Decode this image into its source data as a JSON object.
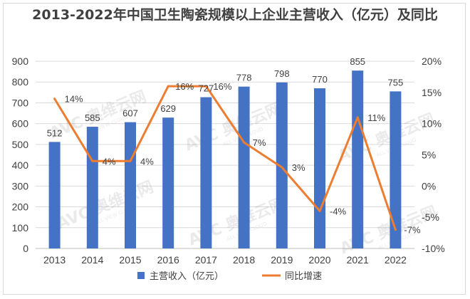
{
  "chart_data": {
    "type": "bar+line",
    "title": "2013-2022年中国卫生陶瓷规模以上企业主营收入（亿元）及同比",
    "categories": [
      "2013",
      "2014",
      "2015",
      "2016",
      "2017",
      "2018",
      "2019",
      "2020",
      "2021",
      "2022"
    ],
    "series": [
      {
        "name": "主营收入（亿元）",
        "type": "bar",
        "axis": "left",
        "color": "#4472c4",
        "values": [
          512,
          585,
          607,
          629,
          727,
          778,
          798,
          770,
          855,
          755
        ],
        "labels": [
          "512",
          "585",
          "607",
          "629",
          "727",
          "778",
          "798",
          "770",
          "855",
          "755"
        ]
      },
      {
        "name": "同比增速",
        "type": "line",
        "axis": "right",
        "color": "#ed7d31",
        "values": [
          14,
          4,
          4,
          16,
          16,
          7,
          3,
          -4,
          11,
          -7
        ],
        "labels": [
          "14%",
          "4%",
          "4%",
          "16%",
          "16%",
          "7%",
          "3%",
          "-4%",
          "11%",
          "-7%"
        ]
      }
    ],
    "y_left": {
      "ylim": [
        0,
        900
      ],
      "ticks": [
        "0",
        "100",
        "200",
        "300",
        "400",
        "500",
        "600",
        "700",
        "800",
        "900"
      ]
    },
    "y_right": {
      "ylim": [
        -10,
        20
      ],
      "ticks": [
        "-10%",
        "-5%",
        "0%",
        "5%",
        "10%",
        "15%",
        "20%"
      ]
    },
    "grid": true,
    "legend": "bottom",
    "watermark": "AVC 奥维云网 ALL VIEW CLOUD"
  }
}
